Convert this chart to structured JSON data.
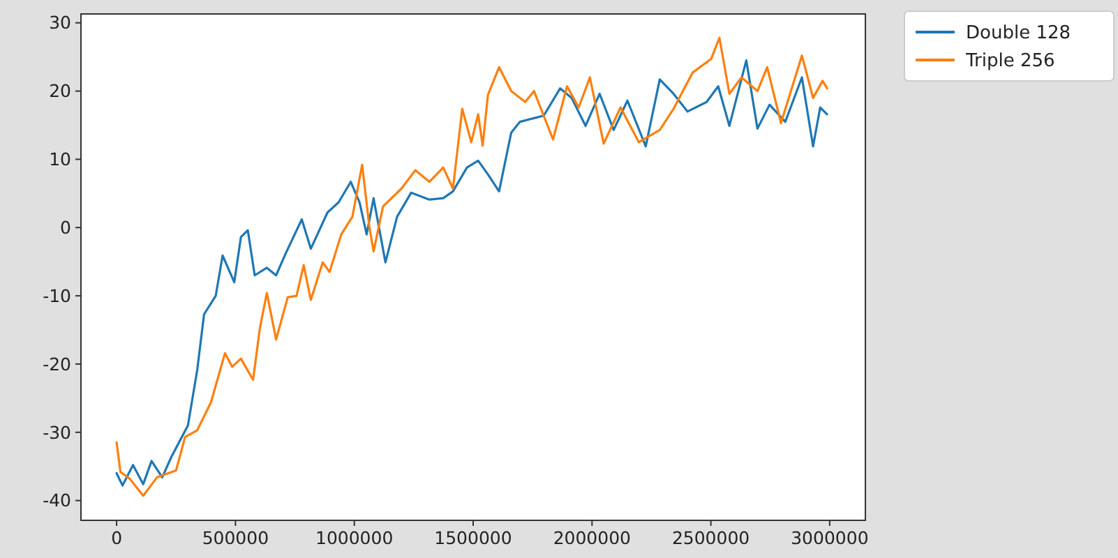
{
  "chart_data": {
    "type": "line",
    "xlim": [
      -150000,
      3150000
    ],
    "ylim": [
      -42.9,
      31.3
    ],
    "xticks": [
      0,
      500000,
      1000000,
      1500000,
      2000000,
      2500000,
      3000000
    ],
    "yticks": [
      -40,
      -30,
      -20,
      -10,
      0,
      10,
      20,
      30
    ],
    "grid": false,
    "legend": "top right",
    "marker": "none",
    "line_style": "solid",
    "series": [
      {
        "name": "Double 128",
        "color": "#1f77b4",
        "x": [
          0,
          25000,
          69000,
          112000,
          147000,
          192000,
          229000,
          300000,
          339000,
          368000,
          417000,
          446000,
          495000,
          523000,
          552000,
          581000,
          632000,
          671000,
          710000,
          779000,
          817000,
          887000,
          934000,
          985000,
          1022000,
          1052000,
          1081000,
          1131000,
          1180000,
          1239000,
          1316000,
          1374000,
          1415000,
          1474000,
          1521000,
          1562000,
          1609000,
          1660000,
          1697000,
          1797000,
          1866000,
          1914000,
          1973000,
          2032000,
          2091000,
          2149000,
          2226000,
          2285000,
          2343000,
          2402000,
          2482000,
          2531000,
          2578000,
          2649000,
          2696000,
          2747000,
          2813000,
          2883000,
          2930000,
          2960000,
          2989000
        ],
        "values": [
          -36,
          -37.8,
          -34.8,
          -37.6,
          -34.2,
          -36.6,
          -33.7,
          -29,
          -20.9,
          -12.7,
          -10,
          -4.1,
          -8,
          -1.4,
          -0.4,
          -7,
          -5.9,
          -7,
          -3.9,
          1.2,
          -3.1,
          2.2,
          3.7,
          6.7,
          3.7,
          -1,
          4.3,
          -5.1,
          1.6,
          5.1,
          4.1,
          4.3,
          5.3,
          8.8,
          9.8,
          7.8,
          5.3,
          13.9,
          15.5,
          16.4,
          20.4,
          19,
          14.9,
          19.6,
          14.3,
          18.6,
          11.9,
          21.7,
          19.6,
          17,
          18.4,
          20.7,
          14.9,
          24.5,
          14.5,
          18,
          15.5,
          22,
          11.9,
          17.6,
          16.6
        ]
      },
      {
        "name": "Triple 256",
        "color": "#ff7f0e",
        "x": [
          0,
          16000,
          55000,
          112000,
          170000,
          250000,
          288000,
          339000,
          397000,
          456000,
          486000,
          523000,
          574000,
          603000,
          632000,
          671000,
          720000,
          757000,
          787000,
          817000,
          867000,
          896000,
          945000,
          992000,
          1033000,
          1063000,
          1081000,
          1121000,
          1198000,
          1257000,
          1316000,
          1374000,
          1415000,
          1454000,
          1492000,
          1521000,
          1540000,
          1562000,
          1609000,
          1660000,
          1719000,
          1756000,
          1836000,
          1895000,
          1944000,
          1991000,
          2049000,
          2120000,
          2197000,
          2285000,
          2343000,
          2423000,
          2501000,
          2536000,
          2578000,
          2629000,
          2696000,
          2737000,
          2795000,
          2883000,
          2930000,
          2970000,
          2989000
        ],
        "values": [
          -31.5,
          -35.8,
          -36.8,
          -39.3,
          -36.6,
          -35.6,
          -30.7,
          -29.7,
          -25.6,
          -18.4,
          -20.4,
          -19.2,
          -22.3,
          -14.7,
          -9.6,
          -16.4,
          -10.2,
          -10,
          -5.5,
          -10.6,
          -5.1,
          -6.5,
          -1,
          1.6,
          9.2,
          0.2,
          -3.5,
          3.1,
          5.7,
          8.4,
          6.7,
          8.8,
          5.7,
          17.4,
          12.5,
          16.6,
          12,
          19.4,
          23.5,
          20,
          18.4,
          20,
          12.9,
          20.7,
          17.6,
          22,
          12.3,
          17.6,
          12.5,
          14.3,
          17.4,
          22.7,
          24.7,
          27.8,
          19.6,
          22,
          20,
          23.5,
          15.3,
          25.2,
          19,
          21.5,
          20.4
        ]
      }
    ]
  }
}
